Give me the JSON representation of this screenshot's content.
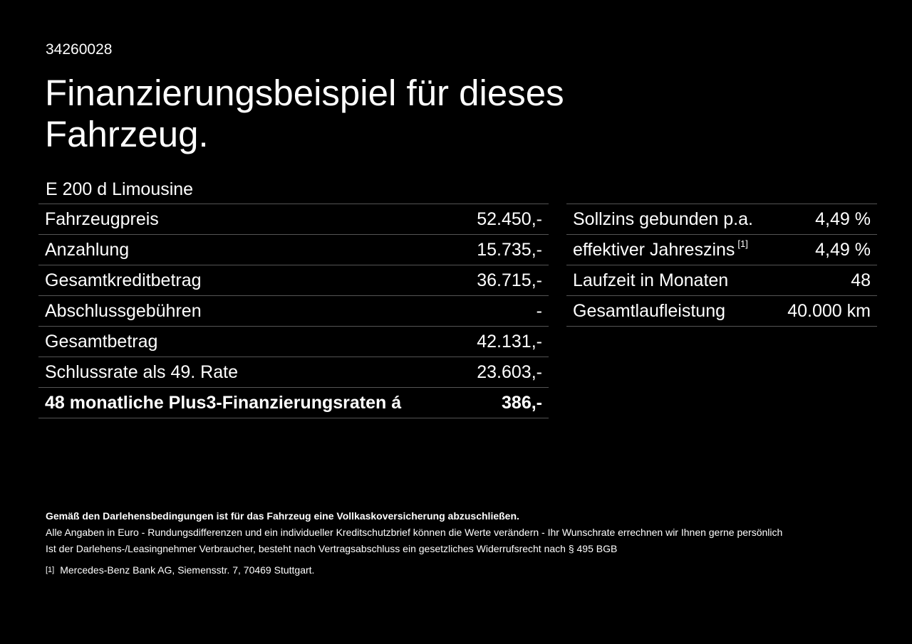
{
  "ref_id": "34260028",
  "title": "Finanzierungsbeispiel für dieses Fahrzeug.",
  "model": "E 200 d Limousine",
  "left_rows": [
    {
      "label": "Fahrzeugpreis",
      "value": "52.450,-"
    },
    {
      "label": "Anzahlung",
      "value": "15.735,-"
    },
    {
      "label": "Gesamtkreditbetrag",
      "value": "36.715,-"
    },
    {
      "label": "Abschlussgebühren",
      "value": "-"
    },
    {
      "label": "Gesamtbetrag",
      "value": "42.131,-"
    },
    {
      "label": "Schlussrate als 49. Rate",
      "value": "23.603,-"
    },
    {
      "label": "48 monatliche Plus3-Finanzierungsraten á",
      "value": "386,-"
    }
  ],
  "right_rows": [
    {
      "label": "Sollzins gebunden p.a.",
      "value": "4,49 %"
    },
    {
      "label": "effektiver Jahreszins",
      "ref": "[1]",
      "value": "4,49 %"
    },
    {
      "label": "Laufzeit in Monaten",
      "value": "48"
    },
    {
      "label": "Gesamtlaufleistung",
      "value": "40.000 km"
    }
  ],
  "notes": {
    "insurance": "Gemäß den Darlehensbedingungen ist für das Fahrzeug eine Vollkaskoversicherung abzuschließen.",
    "amounts": "Alle Angaben in Euro - Rundungsdifferenzen und ein individueller Kreditschutzbrief können die Werte verändern - Ihr Wunschrate errechnen wir Ihnen gerne persönlich",
    "withdrawal": "Ist der Darlehens-/Leasingnehmer Verbraucher, besteht nach Vertragsabschluss ein gesetzliches Widerrufsrecht nach § 495 BGB"
  },
  "footnote": {
    "mark": "[1]",
    "text": "Mercedes-Benz Bank AG, Siemensstr. 7, 70469 Stuttgart."
  }
}
